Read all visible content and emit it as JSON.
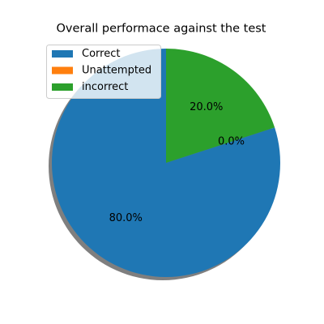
{
  "chart_data": {
    "type": "pie",
    "title": "Overall performace against the test",
    "labels": [
      "Correct",
      "Unattempted",
      "incorrect"
    ],
    "values": [
      80,
      0,
      20
    ],
    "percent_labels": [
      "80.0%",
      "0.0%",
      "20.0%"
    ],
    "colors": [
      "#1f77b4",
      "#ff7f0e",
      "#2ca02c"
    ],
    "start_angle_deg": 90,
    "shadow": true,
    "legend_position": "upper-left"
  }
}
